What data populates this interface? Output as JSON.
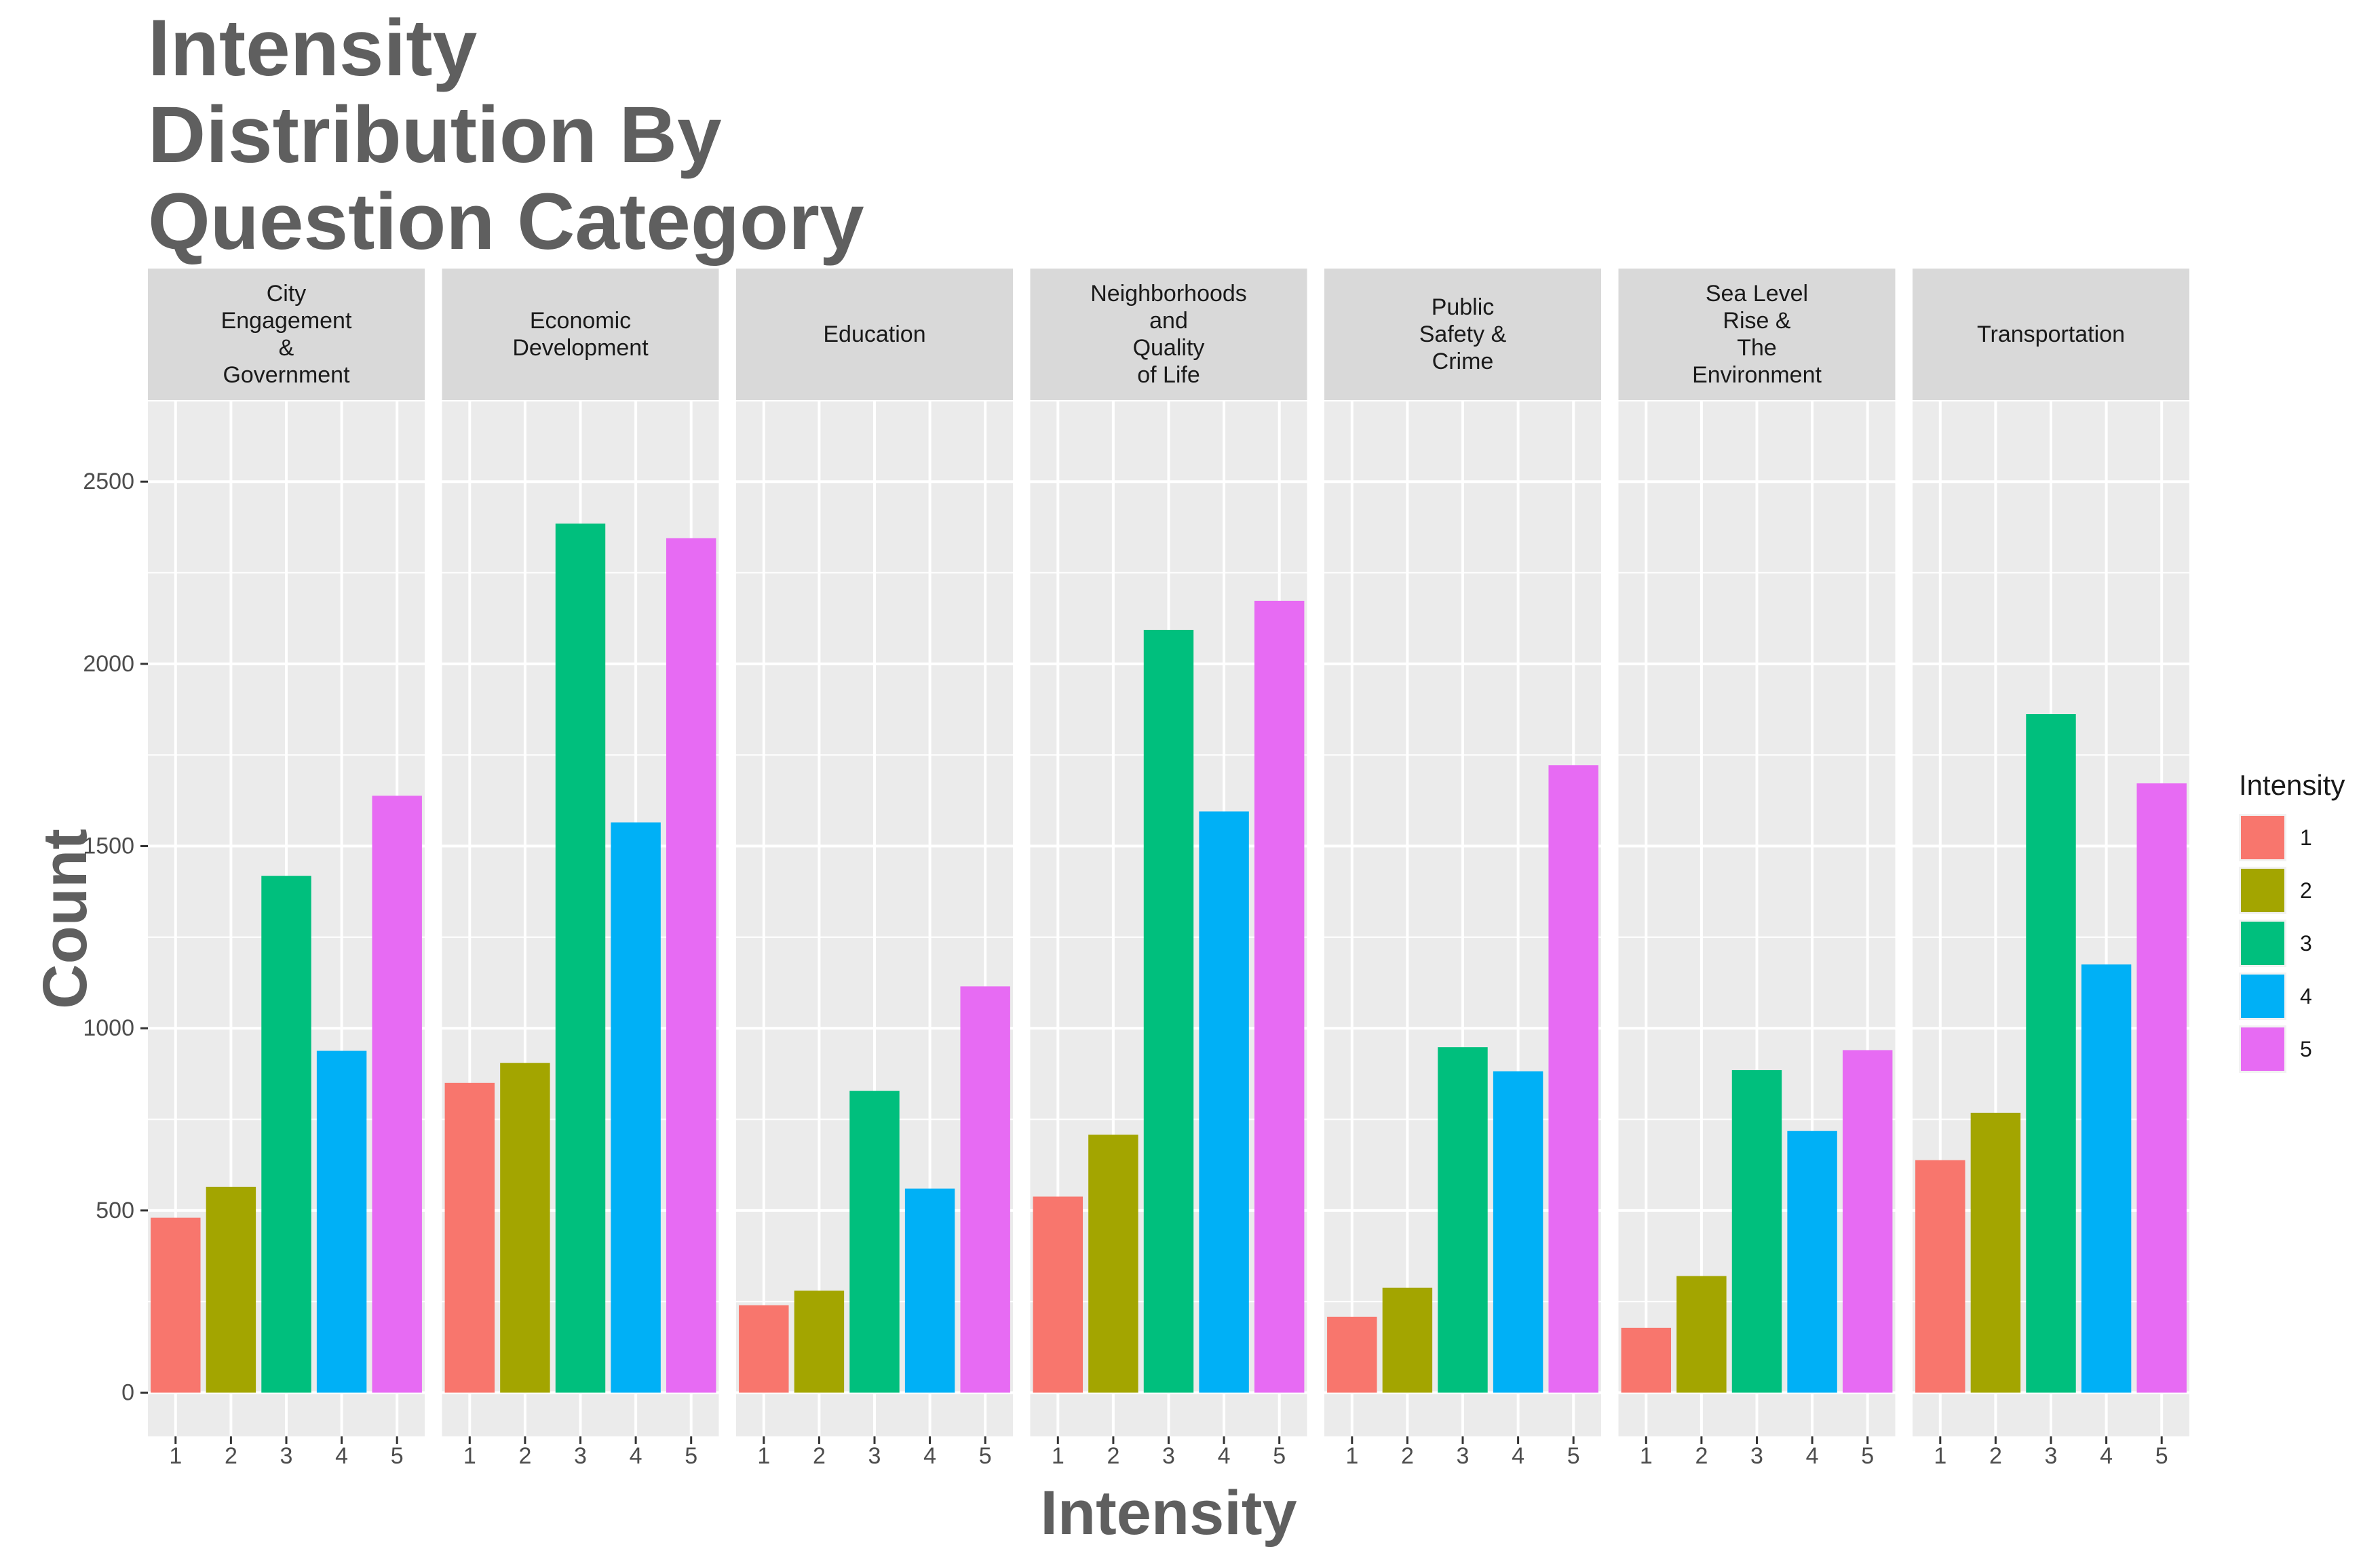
{
  "chart_data": {
    "type": "bar",
    "title": "Intensity Distribution By Question Category",
    "title_lines": [
      "Intensity",
      "Distribution By",
      "Question Category"
    ],
    "xlabel": "Intensity",
    "ylabel": "Count",
    "ylim": [
      -120,
      2720
    ],
    "y_ticks": [
      0,
      500,
      1000,
      1500,
      2000,
      2500
    ],
    "x_categories": [
      "1",
      "2",
      "3",
      "4",
      "5"
    ],
    "grid": true,
    "legend": {
      "title": "Intensity",
      "position": "right",
      "entries": [
        "1",
        "2",
        "3",
        "4",
        "5"
      ]
    },
    "colors": [
      "#F8766D",
      "#A3A500",
      "#00BF7D",
      "#00B0F6",
      "#E76BF3"
    ],
    "facets": [
      {
        "label_lines": [
          "City",
          "Engagement",
          "&",
          "Government"
        ],
        "values": [
          480,
          565,
          1418,
          938,
          1638
        ]
      },
      {
        "label_lines": [
          "Economic",
          "Development"
        ],
        "values": [
          850,
          905,
          2385,
          1565,
          2345
        ]
      },
      {
        "label_lines": [
          "Education"
        ],
        "values": [
          240,
          280,
          828,
          560,
          1115
        ]
      },
      {
        "label_lines": [
          "Neighborhoods",
          "and",
          "Quality",
          "of Life"
        ],
        "values": [
          538,
          708,
          2093,
          1595,
          2173
        ]
      },
      {
        "label_lines": [
          "Public",
          "Safety &",
          "Crime"
        ],
        "values": [
          208,
          288,
          948,
          882,
          1722
        ]
      },
      {
        "label_lines": [
          "Sea Level",
          "Rise &",
          "The",
          "Environment"
        ],
        "values": [
          178,
          320,
          885,
          718,
          940
        ]
      },
      {
        "label_lines": [
          "Transportation"
        ],
        "values": [
          638,
          768,
          1862,
          1175,
          1672
        ]
      }
    ]
  }
}
